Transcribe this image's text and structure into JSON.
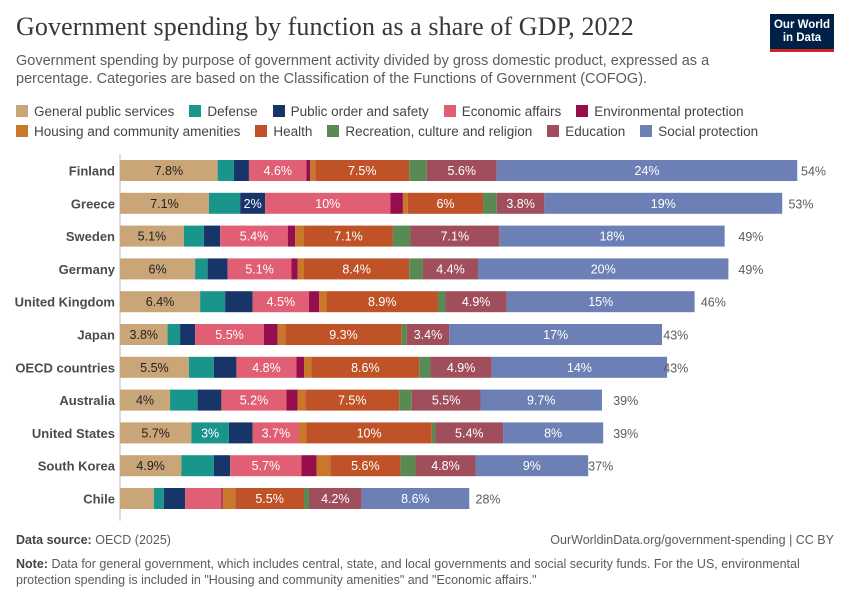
{
  "header": {
    "title": "Government spending by function as a share of GDP, 2022",
    "subtitle": "Government spending by purpose of government activity divided by gross domestic product, expressed as a percentage. Categories are based on the Classification of the Functions of Government (COFOG).",
    "logo_line1": "Our World",
    "logo_line2": "in Data"
  },
  "footer": {
    "source_label": "Data source:",
    "source_value": "OECD (2025)",
    "url": "OurWorldinData.org/government-spending | CC BY",
    "note_label": "Note:",
    "note_text": "Data for general government, which includes central, state, and local governments and social security funds. For the US, environmental protection spending is included in \"Housing and community amenities\" and \"Economic affairs.\""
  },
  "chart_data": {
    "type": "bar",
    "orientation": "horizontal",
    "stacked": true,
    "title": "Government spending by function as a share of GDP, 2022",
    "unit": "% of GDP",
    "xlim": [
      0,
      54
    ],
    "categories": [
      "Finland",
      "Greece",
      "Sweden",
      "Germany",
      "United Kingdom",
      "Japan",
      "OECD countries",
      "Australia",
      "United States",
      "South Korea",
      "Chile"
    ],
    "totals": [
      54,
      53,
      49,
      49,
      46,
      43,
      43,
      39,
      39,
      37,
      28
    ],
    "total_labels": [
      "54%",
      "53%",
      "49%",
      "49%",
      "46%",
      "43%",
      "43%",
      "39%",
      "39%",
      "37%",
      "28%"
    ],
    "series": [
      {
        "name": "General public services",
        "color": "#c9a578",
        "values": [
          7.8,
          7.1,
          5.1,
          6,
          6.4,
          3.8,
          5.5,
          4,
          5.7,
          4.9,
          2.7
        ],
        "labels": [
          "7.8%",
          "7.1%",
          "5.1%",
          "6%",
          "6.4%",
          "3.8%",
          "5.5%",
          "4%",
          "5.7%",
          "4.9%",
          ""
        ]
      },
      {
        "name": "Defense",
        "color": "#1a958c",
        "values": [
          1.3,
          2.5,
          1.6,
          1,
          2,
          1,
          2,
          2.2,
          3,
          2.6,
          0.8
        ],
        "labels": [
          "",
          "",
          "",
          "",
          "",
          "",
          "",
          "",
          "3%",
          "",
          ""
        ]
      },
      {
        "name": "Public order and safety",
        "color": "#18356a",
        "values": [
          1.2,
          2,
          1.3,
          1.6,
          2.2,
          1.2,
          1.8,
          1.9,
          1.9,
          1.3,
          1.7
        ],
        "labels": [
          "",
          "2%",
          "",
          "",
          "",
          "",
          "",
          "",
          "",
          "",
          ""
        ]
      },
      {
        "name": "Economic affairs",
        "color": "#e05f74",
        "values": [
          4.6,
          10,
          5.4,
          5.1,
          4.5,
          5.5,
          4.8,
          5.2,
          3.7,
          5.7,
          2.9
        ],
        "labels": [
          "4.6%",
          "10%",
          "5.4%",
          "5.1%",
          "4.5%",
          "5.5%",
          "4.8%",
          "5.2%",
          "3.7%",
          "5.7%",
          ""
        ]
      },
      {
        "name": "Environmental protection",
        "color": "#960e4e",
        "values": [
          0.3,
          1,
          0.6,
          0.5,
          0.8,
          1.1,
          0.6,
          0.9,
          0,
          1.2,
          0.1
        ],
        "labels": [
          "",
          "",
          "",
          "",
          "",
          "",
          "",
          "",
          "",
          "",
          ""
        ]
      },
      {
        "name": "Housing and community amenities",
        "color": "#c9772b",
        "values": [
          0.4,
          0.4,
          0.7,
          0.5,
          0.6,
          0.6,
          0.6,
          0.6,
          0.6,
          1.1,
          1
        ],
        "labels": [
          "",
          "",
          "",
          "",
          "",
          "",
          "",
          "",
          "",
          "",
          ""
        ]
      },
      {
        "name": "Health",
        "color": "#bf5227",
        "values": [
          7.5,
          6,
          7.1,
          8.4,
          8.9,
          9.3,
          8.6,
          7.5,
          10,
          5.6,
          5.5
        ],
        "labels": [
          "7.5%",
          "6%",
          "7.1%",
          "8.4%",
          "8.9%",
          "9.3%",
          "8.6%",
          "7.5%",
          "10%",
          "5.6%",
          "5.5%"
        ]
      },
      {
        "name": "Recreation, culture and religion",
        "color": "#5a8a53",
        "values": [
          1.4,
          1.1,
          1.4,
          1.1,
          0.6,
          0.4,
          0.9,
          1,
          0.3,
          1.2,
          0.4
        ],
        "labels": [
          "",
          "",
          "",
          "",
          "",
          "",
          "",
          "",
          "",
          "",
          ""
        ]
      },
      {
        "name": "Education",
        "color": "#a14e5c",
        "values": [
          5.6,
          3.8,
          7.1,
          4.4,
          4.9,
          3.4,
          4.9,
          5.5,
          5.4,
          4.8,
          4.2
        ],
        "labels": [
          "5.6%",
          "3.8%",
          "7.1%",
          "4.4%",
          "4.9%",
          "3.4%",
          "4.9%",
          "5.5%",
          "5.4%",
          "4.8%",
          "4.2%"
        ]
      },
      {
        "name": "Social protection",
        "color": "#6d80b5",
        "values": [
          24,
          19,
          18,
          20,
          15,
          17,
          14,
          9.7,
          8,
          9,
          8.6
        ],
        "labels": [
          "24%",
          "19%",
          "18%",
          "20%",
          "15%",
          "17%",
          "14%",
          "9.7%",
          "8%",
          "9%",
          "8.6%"
        ]
      }
    ]
  }
}
